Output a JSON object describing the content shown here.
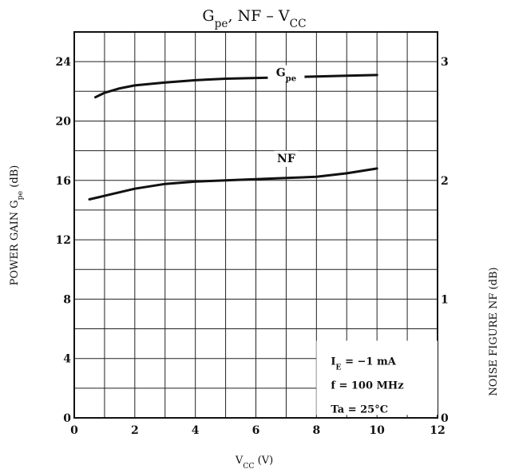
{
  "chart_data": {
    "type": "line",
    "title": {
      "main": "G",
      "main_sub": "pe",
      "rest": ", NF  –  V",
      "rest_sub": "CC"
    },
    "xlabel": {
      "main": "V",
      "sub": "CC",
      "unit": "  (V)"
    },
    "ylabel_left": {
      "main": "POWER GAIN  G",
      "sub": "pe",
      "unit": "  (dB)"
    },
    "ylabel_right": "NOISE FIGURE   NF   (dB)",
    "xlim": [
      0,
      12
    ],
    "ylim_left": [
      0,
      26
    ],
    "ylim_right": [
      0,
      3.25
    ],
    "x_ticks": [
      "0",
      "2",
      "4",
      "6",
      "8",
      "10",
      "12"
    ],
    "y_left_ticks": [
      "0",
      "4",
      "8",
      "12",
      "16",
      "20",
      "24"
    ],
    "y_right_ticks": [
      "0",
      "1",
      "2",
      "3"
    ],
    "grid": true,
    "series": [
      {
        "name": "G",
        "name_sub": "pe",
        "axis": "left",
        "x": [
          0.7,
          1.0,
          1.5,
          2.0,
          3.0,
          4.0,
          5.0,
          6.0,
          7.0,
          8.0,
          9.0,
          10.0
        ],
        "y": [
          21.6,
          21.9,
          22.2,
          22.4,
          22.6,
          22.75,
          22.85,
          22.9,
          22.95,
          23.0,
          23.05,
          23.1
        ]
      },
      {
        "name": "NF",
        "name_sub": "",
        "axis": "right",
        "x": [
          0.5,
          1.0,
          2.0,
          3.0,
          4.0,
          5.0,
          6.0,
          7.0,
          8.0,
          9.0,
          10.0
        ],
        "y": [
          1.84,
          1.87,
          1.93,
          1.97,
          1.99,
          2.0,
          2.01,
          2.02,
          2.03,
          2.06,
          2.1
        ]
      }
    ],
    "annotations": [
      {
        "main": "I",
        "sub": "E",
        "rest": " = −1 mA"
      },
      {
        "main": "f = 100 MHz",
        "sub": "",
        "rest": ""
      },
      {
        "main": "Ta = 25°C",
        "sub": "",
        "rest": ""
      }
    ]
  }
}
